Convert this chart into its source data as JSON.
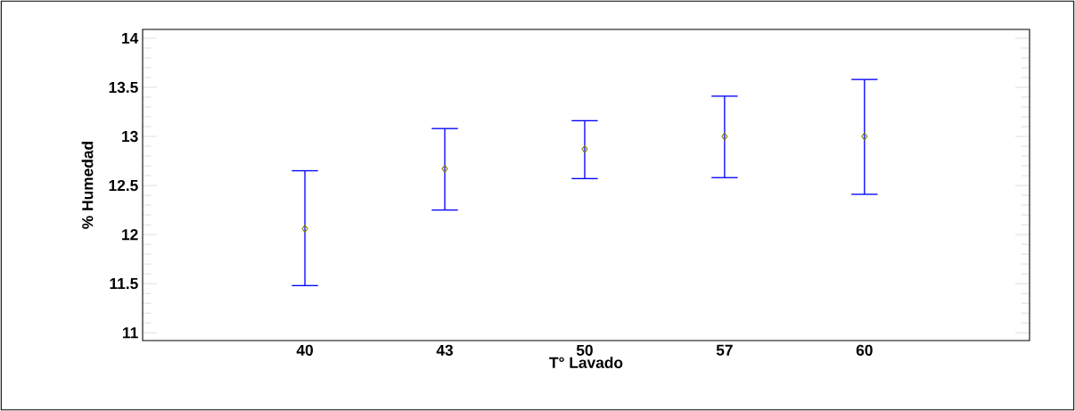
{
  "chart_data": {
    "type": "scatter",
    "xlabel": "T° Lavado",
    "ylabel": "% Humedad",
    "categories": [
      "40",
      "43",
      "50",
      "57",
      "60"
    ],
    "series": [
      {
        "color": "#808000",
        "values": [
          12.06,
          12.67,
          12.87,
          13.0,
          13.0
        ],
        "errors": [
          [
            11.48,
            12.65
          ],
          [
            12.25,
            13.08
          ],
          [
            12.57,
            13.16
          ],
          [
            12.58,
            13.41
          ],
          [
            12.41,
            13.58
          ]
        ]
      }
    ],
    "marker": "diamond",
    "ylim": [
      10.92,
      14.09
    ],
    "yticks": [
      {
        "value": 11,
        "label": "11"
      },
      {
        "value": 11.5,
        "label": "11.5"
      },
      {
        "value": 12,
        "label": "12"
      },
      {
        "value": 12.5,
        "label": "12.5"
      },
      {
        "value": 13,
        "label": "13"
      },
      {
        "value": 13.5,
        "label": "13.5"
      },
      {
        "value": 14,
        "label": "14"
      }
    ]
  }
}
